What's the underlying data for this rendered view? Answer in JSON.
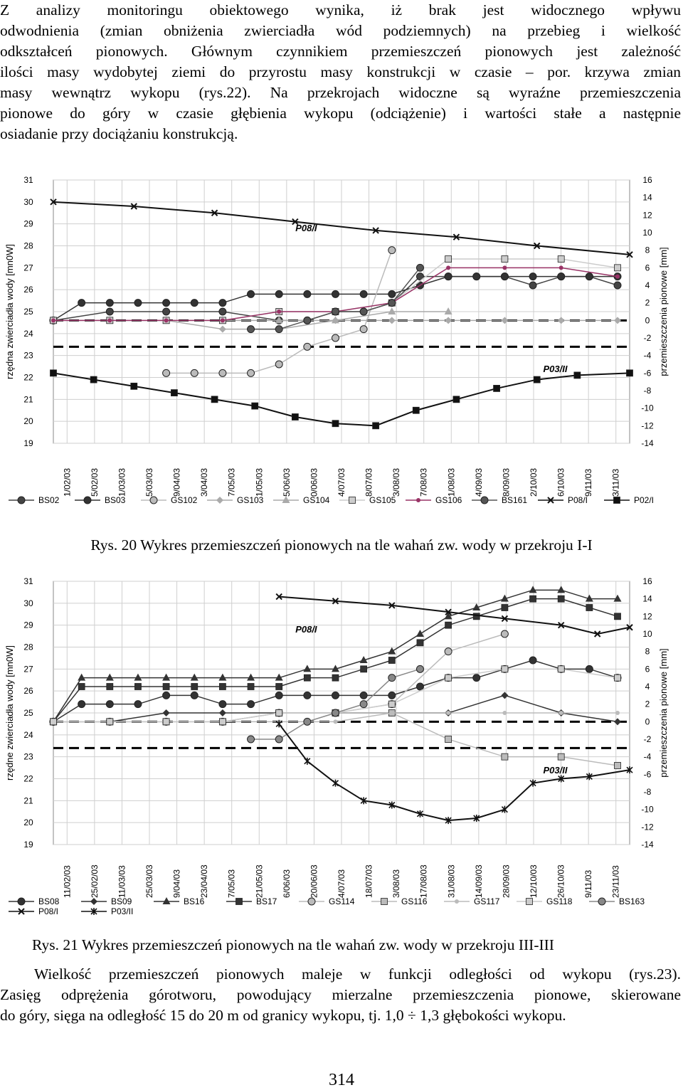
{
  "paragraph1": {
    "lines": [
      "Z analizy monitoringu obiektowego wynika, iż brak jest widocznego wpływu",
      "odwodnienia (zmian obniżenia zwierciadła wód podziemnych) na przebieg i wielkość",
      "odkształceń pionowych. Głównym czynnikiem przemieszczeń pionowych jest zależność",
      "ilości masy wydobytej ziemi do przyrostu masy konstrukcji w czasie – por. krzywa zmian",
      "masy wewnątrz wykopu (rys.22). Na przekrojach widoczne są wyraźne przemieszczenia",
      "pionowe do góry w czasie głębienia wykopu (odciążenie) i wartości stałe a następnie",
      "osiadanie przy dociążaniu konstrukcją."
    ]
  },
  "chart1_caption": "Rys. 20 Wykres przemieszczeń pionowych na tle wahań zw. wody w przekroju I-I",
  "chart2_caption": "Rys. 21 Wykres przemieszczeń pionowych na tle wahań zw. wody w przekroju III-III",
  "paragraph2": {
    "lines": [
      "Wielkość przemieszczeń pionowych maleje w funkcji odległości od wykopu (rys.23).",
      "Zasięg odprężenia górotworu, powodujący mierzalne przemieszczenia pionowe, skierowane",
      "do góry, sięga na odległość 15 do 20 m od granicy wykopu, tj. 1,0 ÷ 1,3 głębokości wykopu."
    ]
  },
  "page_number": "314",
  "chart_data": [
    {
      "type": "line",
      "ylabel": "rzędna zwierciadła wody [mn0W]",
      "y2label": "przemieszczenia pionowe [mm]",
      "ylim": [
        19,
        31
      ],
      "y2lim": [
        -14,
        16
      ],
      "yticks": [
        "31",
        "30",
        "29",
        "28",
        "27",
        "26",
        "25",
        "24",
        "23",
        "22",
        "21",
        "20",
        "19"
      ],
      "y2ticks": [
        "16",
        "14",
        "12",
        "10",
        "8",
        "6",
        "4",
        "2",
        "0",
        "-2",
        "-4",
        "-6",
        "-8",
        "-10",
        "-12",
        "-14"
      ],
      "x_ticks": [
        "1/02/03",
        "5/02/03",
        "1/03/03",
        "5/03/03",
        "9/04/03",
        "3/04/03",
        "7/05/03",
        "1/05/03",
        "5/06/03",
        "0/06/03",
        "4/07/03",
        "8/07/03",
        "3/08/03",
        "7/08/03",
        "1/08/03",
        "4/09/03",
        "8/09/03",
        "2/10/03",
        "6/10/03",
        "9/11/03",
        "3/11/03"
      ],
      "x_range_days": [
        0,
        286
      ],
      "annotations": [
        "P08/I",
        "P03/II"
      ],
      "grid": true,
      "legend_position": "bottom",
      "reference_lines_y2": [
        0,
        -3
      ],
      "series": [
        {
          "name": "BS02",
          "style": "circle-line",
          "color": "#444444",
          "x": [
            0,
            28,
            56,
            84,
            112,
            126,
            140,
            154,
            168,
            182,
            196,
            210,
            224,
            238,
            252,
            266,
            280
          ],
          "y": [
            0,
            1,
            1,
            1,
            0,
            0,
            1,
            1,
            2,
            5,
            5,
            5,
            5,
            4,
            5,
            5,
            4
          ]
        },
        {
          "name": "BS03",
          "style": "circle-line",
          "color": "#333333",
          "x": [
            0,
            14,
            28,
            42,
            56,
            70,
            84,
            98,
            112,
            126,
            140,
            154,
            168,
            182,
            196,
            210,
            224,
            238,
            252,
            266,
            280
          ],
          "y": [
            0,
            2,
            2,
            2,
            2,
            2,
            2,
            3,
            3,
            3,
            3,
            3,
            3,
            4,
            5,
            5,
            5,
            5,
            5,
            5,
            5
          ]
        },
        {
          "name": "GS102",
          "style": "circle-line",
          "color": "#bbbbbb",
          "x": [
            56,
            70,
            84,
            98,
            112,
            126,
            140,
            154,
            168
          ],
          "y": [
            -6,
            -6,
            -6,
            -6,
            -5,
            -3,
            -2,
            -1,
            8
          ]
        },
        {
          "name": "GS103",
          "style": "diamond-line",
          "color": "#aaaaaa",
          "x": [
            0,
            28,
            56,
            84,
            112,
            140,
            168,
            196,
            224,
            252,
            280
          ],
          "y": [
            0,
            0,
            0,
            -1,
            -1,
            0,
            0,
            0,
            0,
            0,
            0
          ]
        },
        {
          "name": "GS104",
          "style": "triangle-line",
          "color": "#aaaaaa",
          "x": [
            0,
            28,
            56,
            84,
            112,
            140,
            168,
            196
          ],
          "y": [
            0,
            0,
            0,
            0,
            0,
            0,
            1,
            1
          ]
        },
        {
          "name": "GS105",
          "style": "square-line",
          "color": "#cccccc",
          "x": [
            0,
            28,
            56,
            84,
            112,
            140,
            168,
            196,
            224,
            252,
            280
          ],
          "y": [
            0,
            0,
            0,
            0,
            1,
            1,
            2,
            7,
            7,
            7,
            6
          ]
        },
        {
          "name": "GS106",
          "style": "dot-line",
          "color": "#993366",
          "x": [
            0,
            28,
            56,
            84,
            112,
            140,
            168,
            196,
            224,
            252,
            280
          ],
          "y": [
            0,
            0,
            0,
            0,
            1,
            1,
            2,
            6,
            6,
            6,
            5
          ]
        },
        {
          "name": "BS161",
          "style": "circle-line",
          "color": "#555555",
          "x": [
            98,
            112,
            126,
            140,
            154,
            168,
            182
          ],
          "y": [
            -1,
            -1,
            0,
            1,
            1,
            2,
            6
          ]
        },
        {
          "name": "P08/I",
          "style": "x-line",
          "color": "#111111",
          "x": [
            0,
            40,
            80,
            120,
            160,
            200,
            240,
            286
          ],
          "y": [
            30.0,
            29.8,
            29.5,
            29.1,
            28.7,
            28.4,
            28.0,
            27.6
          ]
        },
        {
          "name": "P02/I",
          "style": "square-line",
          "color": "#111111",
          "x": [
            0,
            20,
            40,
            60,
            80,
            100,
            120,
            140,
            160,
            180,
            200,
            220,
            240,
            260,
            286
          ],
          "y": [
            22.2,
            21.9,
            21.6,
            21.3,
            21.0,
            20.7,
            20.2,
            19.9,
            19.8,
            20.5,
            21.0,
            21.5,
            21.9,
            22.1,
            22.2
          ]
        }
      ]
    },
    {
      "type": "line",
      "ylabel": "rzędne zwierciadła wody [mn0W]",
      "y2label": "przemieszczenia pionowe [mm]",
      "ylim": [
        19,
        31
      ],
      "y2lim": [
        -14,
        16
      ],
      "yticks": [
        "31",
        "30",
        "29",
        "28",
        "27",
        "26",
        "25",
        "24",
        "23",
        "22",
        "21",
        "20",
        "19"
      ],
      "y2ticks": [
        "16",
        "14",
        "12",
        "10",
        "8",
        "6",
        "4",
        "2",
        "0",
        "-2",
        "-4",
        "-6",
        "-8",
        "-10",
        "-12",
        "-14"
      ],
      "x_ticks": [
        "11/02/03",
        "25/02/03",
        "11/03/03",
        "25/03/03",
        "9/04/03",
        "23/04/03",
        "7/05/03",
        "21/05/03",
        "6/06/03",
        "20/06/03",
        "4/07/03",
        "18/07/03",
        "3/08/03",
        "17/08/03",
        "31/08/03",
        "14/09/03",
        "28/09/03",
        "12/10/03",
        "26/10/03",
        "9/11/03",
        "23/11/03"
      ],
      "x_range_days": [
        0,
        286
      ],
      "annotations": [
        "P08/I",
        "P03/II"
      ],
      "grid": true,
      "legend_position": "bottom",
      "reference_lines_y2": [
        0,
        -3
      ],
      "series": [
        {
          "name": "BS08",
          "style": "circle-line",
          "color": "#333333",
          "x": [
            0,
            14,
            28,
            42,
            56,
            70,
            84,
            98,
            112,
            126,
            140,
            154,
            168,
            182,
            196,
            210,
            224,
            238,
            252,
            266,
            280
          ],
          "y": [
            0,
            2,
            2,
            2,
            3,
            3,
            2,
            2,
            3,
            3,
            3,
            3,
            3,
            4,
            5,
            5,
            6,
            7,
            6,
            6,
            5
          ]
        },
        {
          "name": "BS09",
          "style": "diamond-line",
          "color": "#333333",
          "x": [
            0,
            28,
            56,
            84,
            112,
            140,
            168,
            196,
            224,
            252,
            280
          ],
          "y": [
            0,
            0,
            1,
            1,
            1,
            1,
            1,
            1,
            3,
            1,
            0
          ]
        },
        {
          "name": "BS16",
          "style": "triangle-line",
          "color": "#333333",
          "x": [
            0,
            14,
            28,
            42,
            56,
            70,
            84,
            98,
            112,
            126,
            140,
            154,
            168,
            182,
            196,
            210,
            224,
            238,
            252,
            266,
            280
          ],
          "y": [
            0,
            5,
            5,
            5,
            5,
            5,
            5,
            5,
            5,
            6,
            6,
            7,
            8,
            10,
            12,
            13,
            14,
            15,
            15,
            14,
            14
          ]
        },
        {
          "name": "BS17",
          "style": "square-line",
          "color": "#333333",
          "x": [
            0,
            14,
            28,
            42,
            56,
            70,
            84,
            98,
            112,
            126,
            140,
            154,
            168,
            182,
            196,
            210,
            224,
            238,
            252,
            266,
            280
          ],
          "y": [
            0,
            4,
            4,
            4,
            4,
            4,
            4,
            4,
            4,
            5,
            5,
            6,
            7,
            9,
            11,
            12,
            13,
            14,
            14,
            13,
            12
          ]
        },
        {
          "name": "GS114",
          "style": "circle-line",
          "color": "#bbbbbb",
          "x": [
            0,
            28,
            56,
            84,
            112,
            140,
            168,
            196,
            224
          ],
          "y": [
            0,
            0,
            0,
            0,
            1,
            1,
            2,
            8,
            10
          ]
        },
        {
          "name": "GS116",
          "style": "square-line",
          "color": "#bbbbbb",
          "x": [
            0,
            28,
            56,
            84,
            112,
            140,
            168,
            196,
            224,
            252,
            280
          ],
          "y": [
            0,
            0,
            0,
            0,
            1,
            1,
            1,
            -2,
            -4,
            -4,
            -5
          ]
        },
        {
          "name": "GS117",
          "style": "dot-line",
          "color": "#bbbbbb",
          "x": [
            0,
            28,
            56,
            84,
            112,
            140,
            168,
            196,
            224,
            252,
            280
          ],
          "y": [
            0,
            0,
            0,
            0,
            0,
            0,
            1,
            1,
            1,
            1,
            1
          ]
        },
        {
          "name": "GS118",
          "style": "square-line",
          "color": "#cccccc",
          "x": [
            0,
            28,
            56,
            84,
            112,
            140,
            168,
            196,
            224,
            252,
            280
          ],
          "y": [
            0,
            0,
            0,
            0,
            1,
            1,
            2,
            5,
            6,
            6,
            5
          ]
        },
        {
          "name": "BS163",
          "style": "circle-line",
          "color": "#888888",
          "x": [
            98,
            112,
            126,
            140,
            154,
            168,
            182
          ],
          "y": [
            -2,
            -2,
            0,
            1,
            2,
            5,
            6
          ]
        },
        {
          "name": "P08/I",
          "style": "x-line",
          "color": "#111111",
          "x": [
            112,
            140,
            168,
            196,
            224,
            252,
            270,
            286
          ],
          "y": [
            30.3,
            30.1,
            29.9,
            29.6,
            29.3,
            29.0,
            28.6,
            28.9
          ]
        },
        {
          "name": "P03/II",
          "style": "star-line",
          "color": "#111111",
          "x": [
            112,
            126,
            140,
            154,
            168,
            182,
            196,
            210,
            224,
            238,
            252,
            266,
            286
          ],
          "y": [
            24.5,
            22.8,
            21.8,
            21.0,
            20.8,
            20.4,
            20.1,
            20.2,
            20.6,
            21.8,
            22.0,
            22.1,
            22.4
          ]
        }
      ]
    }
  ]
}
